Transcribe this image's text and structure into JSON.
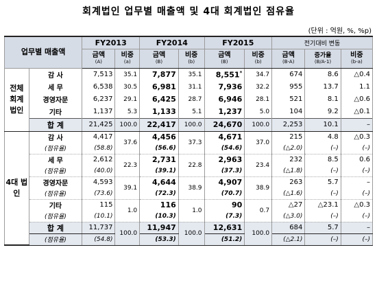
{
  "title": "회계법인 업무별 매출액 및 4대 회계법인 점유율",
  "unit": "(단위 : 억원, %, %p)",
  "header": {
    "row_label": "업무별 매출액",
    "fy": [
      "FY2013",
      "FY2014",
      "FY2015"
    ],
    "change_label": "전기대비 변동",
    "amount": "금액",
    "ratio": "비중",
    "increase": "증가율",
    "sub": {
      "a1": "(A)",
      "a2": "(a)",
      "b1": "(B)",
      "b2": "(b)",
      "c1": "(B)",
      "c2": "(b)",
      "d1": "(B-A)",
      "d2": "(B/A-1)",
      "d3": "(b-a)"
    }
  },
  "group1": "전체 회계법인",
  "group2": "4대 법인",
  "rows1": [
    {
      "name": "감 사",
      "v": [
        "7,513",
        "35.1",
        "7,877",
        "35.1",
        "8,551",
        "34.7",
        "674",
        "8.6",
        "△0.4"
      ],
      "mark": "*"
    },
    {
      "name": "세 무",
      "v": [
        "6,538",
        "30.5",
        "6,981",
        "31.1",
        "7,936",
        "32.2",
        "955",
        "13.7",
        "1.1"
      ]
    },
    {
      "name": "경영자문",
      "v": [
        "6,237",
        "29.1",
        "6,425",
        "28.7",
        "6,946",
        "28.1",
        "521",
        "8.1",
        "△0.6"
      ]
    },
    {
      "name": "기타",
      "v": [
        "1,137",
        "5.3",
        "1,133",
        "5.1",
        "1,237",
        "5.0",
        "104",
        "9.2",
        "△0.1"
      ]
    }
  ],
  "total1": {
    "name": "합 계",
    "v": [
      "21,425",
      "100.0",
      "22,417",
      "100.0",
      "24,670",
      "100.0",
      "2,253",
      "10.1",
      "–"
    ]
  },
  "share_label": "(점유율)",
  "rows2": [
    {
      "name": "감 사",
      "v": [
        "4,417",
        "37.6",
        "4,456",
        "37.3",
        "4,671",
        "37.0",
        "215",
        "4.8",
        "△0.3"
      ],
      "s": [
        "(58.8)",
        "(56.6)",
        "(54.6)",
        "(△2.0)",
        "(–)",
        "(–)"
      ]
    },
    {
      "name": "세 무",
      "v": [
        "2,612",
        "22.3",
        "2,731",
        "22.8",
        "2,963",
        "23.4",
        "232",
        "8.5",
        "0.6"
      ],
      "s": [
        "(40.0)",
        "(39.1)",
        "(37.3)",
        "(△1.8)",
        "(–)",
        "(–)"
      ]
    },
    {
      "name": "경영자문",
      "v": [
        "4,593",
        "39.1",
        "4,644",
        "38.9",
        "4,907",
        "38.9",
        "263",
        "5.7",
        "–"
      ],
      "s": [
        "(73.6)",
        "(72.3)",
        "(70.7)",
        "(△1.6)",
        "(–)",
        "(–)"
      ]
    },
    {
      "name": "기타",
      "v": [
        "115",
        "1.0",
        "116",
        "1.0",
        "90",
        "0.7",
        "△27",
        "△23.1",
        "△0.3"
      ],
      "s": [
        "(10.1)",
        "(10.3)",
        "(7.3)",
        "(△3.0)",
        "(–)",
        "(–)"
      ]
    }
  ],
  "total2": {
    "name": "합 계",
    "v": [
      "11,737",
      "100.0",
      "11,947",
      "100.0",
      "12,631",
      "100.0",
      "684",
      "5.7",
      "–"
    ],
    "s": [
      "(54.8)",
      "(53.3)",
      "(51.2)",
      "(△2.1)",
      "(–)",
      "(–)"
    ]
  }
}
